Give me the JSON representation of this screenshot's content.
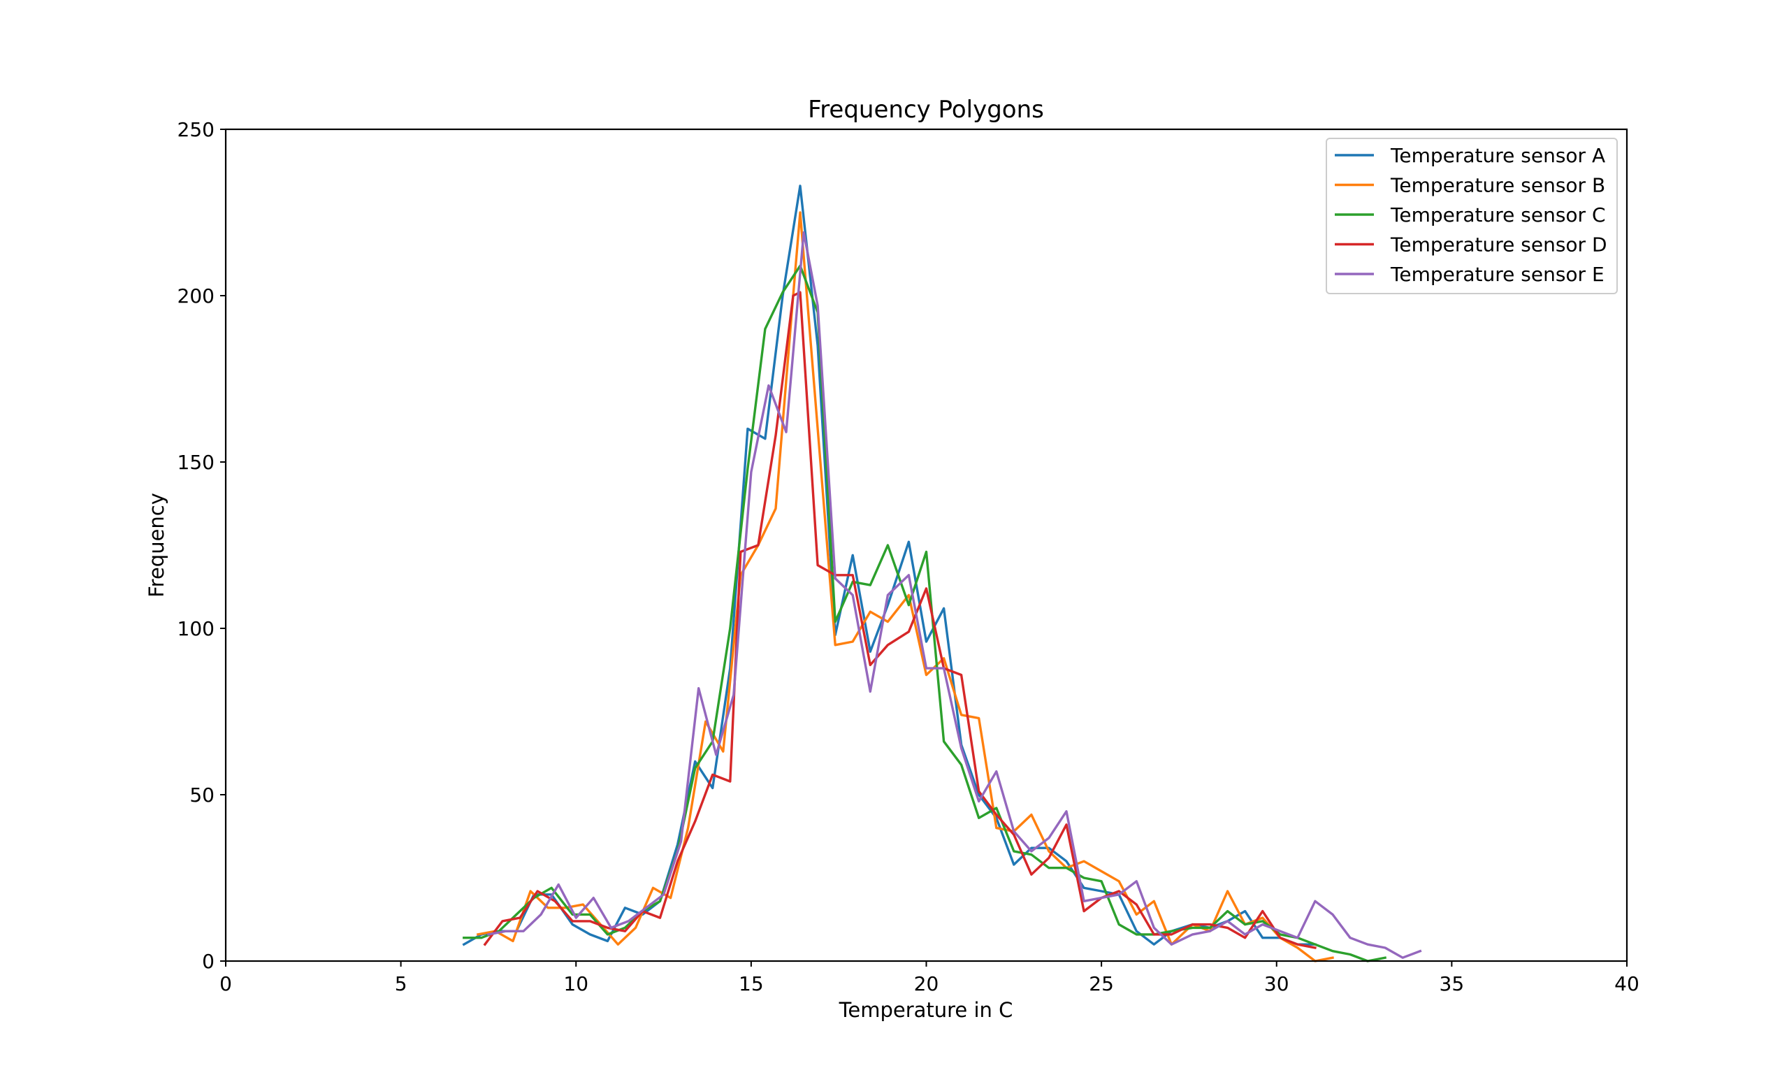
{
  "chart_data": {
    "type": "line",
    "title": "Frequency Polygons",
    "xlabel": "Temperature in C",
    "ylabel": "Frequency",
    "xlim": [
      0,
      40
    ],
    "ylim": [
      0,
      250
    ],
    "xticks": [
      0,
      5,
      10,
      15,
      20,
      25,
      30,
      35,
      40
    ],
    "yticks": [
      0,
      50,
      100,
      150,
      200,
      250
    ],
    "grid": false,
    "legend_position": "top-right",
    "series": [
      {
        "name": "Temperature sensor A",
        "color": "#1f77b4",
        "points": [
          [
            6.8,
            5
          ],
          [
            7.3,
            8
          ],
          [
            7.8,
            9
          ],
          [
            8.3,
            9
          ],
          [
            8.8,
            20
          ],
          [
            9.3,
            20
          ],
          [
            9.9,
            11
          ],
          [
            10.4,
            8
          ],
          [
            10.9,
            6
          ],
          [
            11.4,
            16
          ],
          [
            11.9,
            14
          ],
          [
            12.4,
            18
          ],
          [
            12.9,
            35
          ],
          [
            13.4,
            60
          ],
          [
            13.9,
            52
          ],
          [
            14.4,
            88
          ],
          [
            14.9,
            160
          ],
          [
            15.4,
            157
          ],
          [
            15.9,
            200
          ],
          [
            16.4,
            233
          ],
          [
            16.9,
            185
          ],
          [
            17.4,
            98
          ],
          [
            17.9,
            122
          ],
          [
            18.4,
            93
          ],
          [
            18.9,
            107
          ],
          [
            19.5,
            126
          ],
          [
            20.0,
            96
          ],
          [
            20.5,
            106
          ],
          [
            21.0,
            65
          ],
          [
            21.5,
            50
          ],
          [
            22.0,
            43
          ],
          [
            22.5,
            29
          ],
          [
            23.0,
            34
          ],
          [
            23.5,
            34
          ],
          [
            24.0,
            30
          ],
          [
            24.5,
            22
          ],
          [
            25.0,
            21
          ],
          [
            25.5,
            20
          ],
          [
            26.0,
            9
          ],
          [
            26.5,
            5
          ],
          [
            27.0,
            9
          ],
          [
            27.6,
            11
          ],
          [
            28.1,
            10
          ],
          [
            28.6,
            12
          ],
          [
            29.1,
            15
          ],
          [
            29.6,
            7
          ],
          [
            30.1,
            7
          ],
          [
            30.6,
            5
          ],
          [
            31.1,
            5
          ]
        ]
      },
      {
        "name": "Temperature sensor B",
        "color": "#ff7f0e",
        "points": [
          [
            7.2,
            8
          ],
          [
            7.7,
            9
          ],
          [
            8.2,
            6
          ],
          [
            8.7,
            21
          ],
          [
            9.2,
            16
          ],
          [
            9.7,
            16
          ],
          [
            10.2,
            17
          ],
          [
            10.7,
            11
          ],
          [
            11.2,
            5
          ],
          [
            11.7,
            10
          ],
          [
            12.2,
            22
          ],
          [
            12.7,
            19
          ],
          [
            13.2,
            40
          ],
          [
            13.7,
            72
          ],
          [
            14.2,
            63
          ],
          [
            14.7,
            116
          ],
          [
            15.2,
            125
          ],
          [
            15.7,
            136
          ],
          [
            16.2,
            200
          ],
          [
            16.4,
            225
          ],
          [
            16.9,
            160
          ],
          [
            17.4,
            95
          ],
          [
            17.9,
            96
          ],
          [
            18.4,
            105
          ],
          [
            18.9,
            102
          ],
          [
            19.5,
            110
          ],
          [
            20.0,
            86
          ],
          [
            20.5,
            91
          ],
          [
            21.0,
            74
          ],
          [
            21.5,
            73
          ],
          [
            22.0,
            40
          ],
          [
            22.5,
            39
          ],
          [
            23.0,
            44
          ],
          [
            23.5,
            33
          ],
          [
            24.0,
            28
          ],
          [
            24.5,
            30
          ],
          [
            25.0,
            27
          ],
          [
            25.5,
            24
          ],
          [
            26.0,
            14
          ],
          [
            26.5,
            18
          ],
          [
            27.0,
            5
          ],
          [
            27.6,
            11
          ],
          [
            28.1,
            9
          ],
          [
            28.6,
            21
          ],
          [
            29.1,
            11
          ],
          [
            29.6,
            13
          ],
          [
            30.1,
            7
          ],
          [
            30.6,
            4
          ],
          [
            31.1,
            0
          ],
          [
            31.6,
            1
          ]
        ]
      },
      {
        "name": "Temperature sensor C",
        "color": "#2ca02c",
        "points": [
          [
            6.8,
            7
          ],
          [
            7.3,
            7
          ],
          [
            7.8,
            9
          ],
          [
            8.3,
            14
          ],
          [
            8.8,
            19
          ],
          [
            9.3,
            22
          ],
          [
            9.9,
            14
          ],
          [
            10.4,
            14
          ],
          [
            10.9,
            8
          ],
          [
            11.4,
            10
          ],
          [
            11.9,
            15
          ],
          [
            12.4,
            18
          ],
          [
            12.9,
            33
          ],
          [
            13.4,
            58
          ],
          [
            13.9,
            66
          ],
          [
            14.4,
            100
          ],
          [
            14.9,
            148
          ],
          [
            15.4,
            190
          ],
          [
            15.9,
            201
          ],
          [
            16.4,
            209
          ],
          [
            16.9,
            195
          ],
          [
            17.4,
            102
          ],
          [
            17.9,
            114
          ],
          [
            18.4,
            113
          ],
          [
            18.9,
            125
          ],
          [
            19.5,
            107
          ],
          [
            20.0,
            123
          ],
          [
            20.5,
            66
          ],
          [
            21.0,
            59
          ],
          [
            21.5,
            43
          ],
          [
            22.0,
            46
          ],
          [
            22.5,
            33
          ],
          [
            23.0,
            32
          ],
          [
            23.5,
            28
          ],
          [
            24.0,
            28
          ],
          [
            24.5,
            25
          ],
          [
            25.0,
            24
          ],
          [
            25.5,
            11
          ],
          [
            26.0,
            8
          ],
          [
            26.5,
            8
          ],
          [
            27.0,
            9
          ],
          [
            27.6,
            10
          ],
          [
            28.1,
            10
          ],
          [
            28.6,
            15
          ],
          [
            29.1,
            11
          ],
          [
            29.6,
            12
          ],
          [
            30.1,
            8
          ],
          [
            30.6,
            7
          ],
          [
            31.1,
            5
          ],
          [
            31.6,
            3
          ],
          [
            32.1,
            2
          ],
          [
            32.6,
            0
          ],
          [
            33.1,
            1
          ]
        ]
      },
      {
        "name": "Temperature sensor D",
        "color": "#d62728",
        "points": [
          [
            7.4,
            5
          ],
          [
            7.9,
            12
          ],
          [
            8.4,
            13
          ],
          [
            8.9,
            21
          ],
          [
            9.4,
            18
          ],
          [
            9.9,
            12
          ],
          [
            10.4,
            12
          ],
          [
            10.9,
            10
          ],
          [
            11.4,
            9
          ],
          [
            11.9,
            15
          ],
          [
            12.4,
            13
          ],
          [
            12.9,
            30
          ],
          [
            13.4,
            42
          ],
          [
            13.9,
            56
          ],
          [
            14.4,
            54
          ],
          [
            14.7,
            123
          ],
          [
            15.2,
            125
          ],
          [
            15.7,
            158
          ],
          [
            16.2,
            200
          ],
          [
            16.4,
            201
          ],
          [
            16.9,
            119
          ],
          [
            17.4,
            116
          ],
          [
            17.9,
            116
          ],
          [
            18.4,
            89
          ],
          [
            18.9,
            95
          ],
          [
            19.5,
            99
          ],
          [
            20.0,
            112
          ],
          [
            20.5,
            88
          ],
          [
            21.0,
            86
          ],
          [
            21.5,
            51
          ],
          [
            22.0,
            44
          ],
          [
            22.5,
            38
          ],
          [
            23.0,
            26
          ],
          [
            23.5,
            31
          ],
          [
            24.0,
            41
          ],
          [
            24.5,
            15
          ],
          [
            25.0,
            19
          ],
          [
            25.5,
            21
          ],
          [
            26.0,
            17
          ],
          [
            26.5,
            8
          ],
          [
            27.0,
            8
          ],
          [
            27.6,
            11
          ],
          [
            28.1,
            11
          ],
          [
            28.6,
            10
          ],
          [
            29.1,
            7
          ],
          [
            29.6,
            15
          ],
          [
            30.1,
            7
          ],
          [
            30.6,
            5
          ],
          [
            31.1,
            4
          ]
        ]
      },
      {
        "name": "Temperature sensor E",
        "color": "#9467bd",
        "points": [
          [
            7.5,
            8
          ],
          [
            8.0,
            9
          ],
          [
            8.5,
            9
          ],
          [
            9.0,
            14
          ],
          [
            9.5,
            23
          ],
          [
            10.0,
            13
          ],
          [
            10.5,
            19
          ],
          [
            11.0,
            10
          ],
          [
            11.5,
            12
          ],
          [
            12.0,
            16
          ],
          [
            12.5,
            20
          ],
          [
            13.0,
            36
          ],
          [
            13.5,
            82
          ],
          [
            14.0,
            62
          ],
          [
            14.5,
            80
          ],
          [
            15.0,
            147
          ],
          [
            15.5,
            173
          ],
          [
            16.0,
            159
          ],
          [
            16.5,
            219
          ],
          [
            16.9,
            197
          ],
          [
            17.4,
            115
          ],
          [
            17.9,
            110
          ],
          [
            18.4,
            81
          ],
          [
            18.9,
            110
          ],
          [
            19.5,
            116
          ],
          [
            20.0,
            88
          ],
          [
            20.5,
            88
          ],
          [
            21.0,
            64
          ],
          [
            21.5,
            48
          ],
          [
            22.0,
            57
          ],
          [
            22.5,
            39
          ],
          [
            23.0,
            33
          ],
          [
            23.5,
            37
          ],
          [
            24.0,
            45
          ],
          [
            24.5,
            18
          ],
          [
            25.0,
            19
          ],
          [
            25.5,
            20
          ],
          [
            26.0,
            24
          ],
          [
            26.5,
            10
          ],
          [
            27.0,
            5
          ],
          [
            27.6,
            8
          ],
          [
            28.1,
            9
          ],
          [
            28.6,
            12
          ],
          [
            29.1,
            8
          ],
          [
            29.6,
            11
          ],
          [
            30.1,
            9
          ],
          [
            30.6,
            7
          ],
          [
            31.1,
            18
          ],
          [
            31.6,
            14
          ],
          [
            32.1,
            7
          ],
          [
            32.6,
            5
          ],
          [
            33.1,
            4
          ],
          [
            33.6,
            1
          ],
          [
            34.1,
            3
          ]
        ]
      }
    ]
  }
}
